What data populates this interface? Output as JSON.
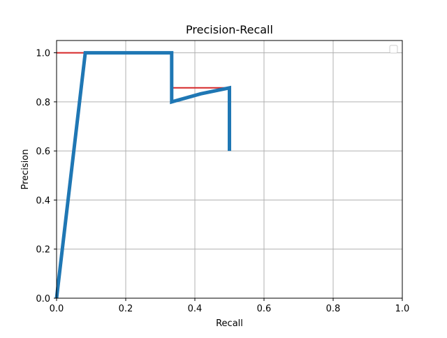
{
  "chart_data": {
    "type": "line",
    "title": "Precision-Recall",
    "xlabel": "Recall",
    "ylabel": "Precision",
    "xlim": [
      0,
      1.0
    ],
    "ylim": [
      0,
      1.05
    ],
    "xticks": [
      "0.0",
      "0.2",
      "0.4",
      "0.6",
      "0.8",
      "1.0"
    ],
    "yticks": [
      "0.0",
      "0.2",
      "0.4",
      "0.6",
      "0.8",
      "1.0"
    ],
    "grid": true,
    "legend": "top-right",
    "series": [
      {
        "color": "#d62728",
        "x": [
          0,
          0.083,
          0.333,
          0.333,
          0.5,
          0.5
        ],
        "y": [
          1.0,
          1.0,
          1.0,
          0.857,
          0.857,
          0.857
        ]
      },
      {
        "color": "#1f77b4",
        "x": [
          0,
          0.083,
          0.333,
          0.333,
          0.417,
          0.5,
          0.5
        ],
        "y": [
          0,
          1.0,
          1.0,
          0.8,
          0.833,
          0.857,
          0.6
        ]
      }
    ]
  }
}
